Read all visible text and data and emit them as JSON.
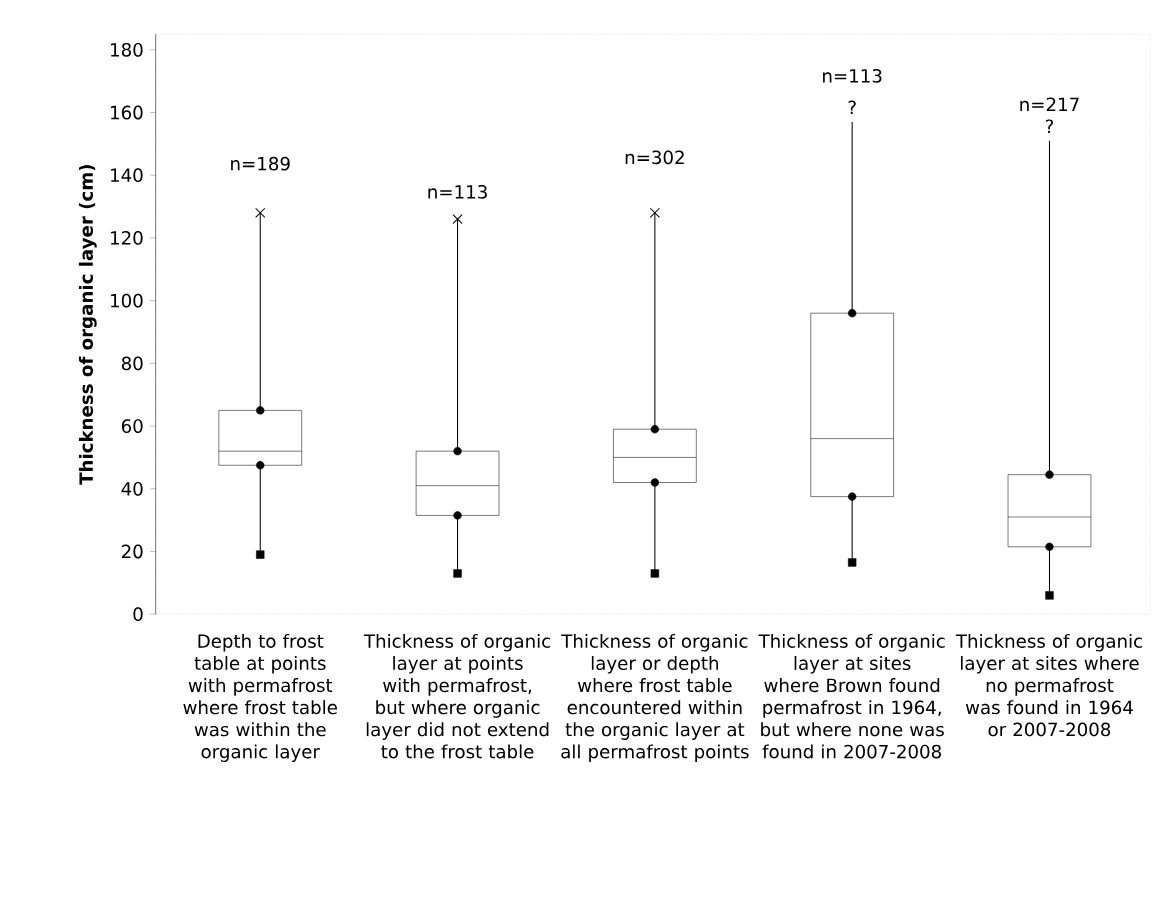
{
  "chart_data": {
    "type": "box",
    "ylabel": "Thickness of organic layer (cm)",
    "categories": [
      "Depth to frost table at points with permafrost where frost table was within the organic layer",
      "Thickness of organic layer at points with permafrost, but where organic layer did not extend to the frost table",
      "Thickness of organic layer or depth where frost table encountered within the organic layer at all permafrost points",
      "Thickness of organic layer at sites where Brown found permafrost in 1964, but where none was found in 2007-2008",
      "Thickness of organic layer at sites where no permafrost was found in 1964 or 2007-2008"
    ],
    "boxes": [
      {
        "low": 19,
        "q1": 47.5,
        "median": 52,
        "q3": 65,
        "high": 128
      },
      {
        "low": 13,
        "q1": 31.5,
        "median": 41,
        "q3": 52,
        "high": 126
      },
      {
        "low": 13,
        "q1": 42,
        "median": 50,
        "q3": 59,
        "high": 128
      },
      {
        "low": 16.5,
        "q1": 37.5,
        "median": 56,
        "q3": 96,
        "high": 157
      },
      {
        "low": 6,
        "q1": 21.5,
        "median": 31,
        "q3": 44.5,
        "high": 151
      }
    ],
    "color": "#000000",
    "series": [
      {
        "type": "scatter",
        "marker": "cross",
        "color": "#000000",
        "values": [
          128,
          126,
          128,
          null,
          null
        ]
      },
      {
        "type": "scatter",
        "marker": "square",
        "color": "#000000",
        "values": [
          19,
          13,
          13,
          16.5,
          6
        ]
      },
      {
        "type": "scatter",
        "marker": "circle",
        "color": "#000000",
        "values": [
          47.5,
          31.5,
          42,
          37.5,
          21.5
        ]
      },
      {
        "type": "scatter",
        "marker": "circle",
        "color": "#000000",
        "values": [
          65,
          52,
          59,
          96,
          44.5
        ]
      }
    ],
    "ylim": [
      0,
      185
    ],
    "yticks": [
      0,
      20,
      40,
      60,
      80,
      100,
      120,
      140,
      160,
      180
    ],
    "annotations": [
      "n=189",
      "n=113",
      "n=302",
      "n=113",
      "n=217",
      "?",
      "?"
    ]
  }
}
